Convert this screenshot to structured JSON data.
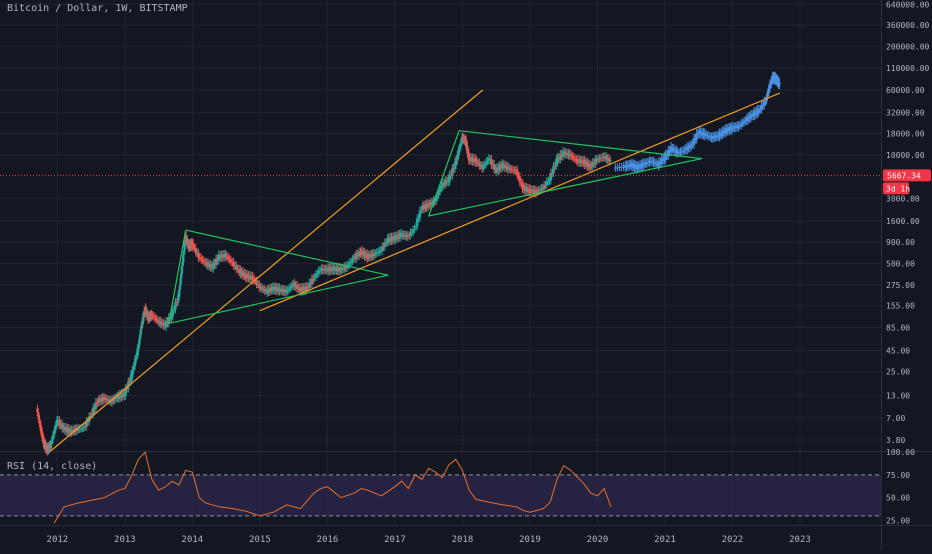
{
  "header": {
    "symbol_label": "Bitcoin / Dollar, 1W, BITSTAMP"
  },
  "rsi_panel": {
    "label": "RSI (14, close)",
    "upper_band": 75,
    "lower_band": 30,
    "ticks": [
      "100.00",
      "75.00",
      "50.00",
      "25.00"
    ]
  },
  "price_marker": {
    "price_label": "5667.34",
    "countdown_label": "3d 1h",
    "value": 5667.34,
    "color": "#f23645"
  },
  "colors": {
    "background": "#131722",
    "grid": "#1f2430",
    "up_candle": "#26a69a",
    "down_candle": "#ef5350",
    "projection": "#4a90e2",
    "channel_line": "#f59a23",
    "triangle_line": "#22c55e",
    "rsi_line": "#e8702a",
    "rsi_band_fill": "#2a2446"
  },
  "chart_data": [
    {
      "type": "candlestick",
      "title": "Bitcoin / Dollar, 1W, BITSTAMP",
      "scale": "log",
      "y_ticks": [
        "640000.00",
        "360000.00",
        "200000.00",
        "110000.00",
        "60000.00",
        "32000.00",
        "18000.00",
        "10000.00",
        "5667.34",
        "3000.00",
        "1600.00",
        "900.00",
        "500.00",
        "275.00",
        "155.00",
        "85.00",
        "45.00",
        "25.00",
        "13.00",
        "7.00",
        "3.80"
      ],
      "y_tick_values": [
        640000,
        360000,
        200000,
        110000,
        60000,
        32000,
        18000,
        10000,
        5667.34,
        3000,
        1600,
        900,
        500,
        275,
        155,
        85,
        45,
        25,
        13,
        7,
        3.8
      ],
      "x_ticks": [
        "2012",
        "2013",
        "2014",
        "2015",
        "2016",
        "2017",
        "2018",
        "2019",
        "2020",
        "2021",
        "2022",
        "2023"
      ],
      "xlim": [
        2011.15,
        2024.2
      ],
      "ylim": [
        2.8,
        720000
      ],
      "series": [
        {
          "kind": "historical",
          "x": [
            2011.7,
            2011.75,
            2011.8,
            2011.85,
            2011.9,
            2011.95,
            2012.0,
            2012.1,
            2012.2,
            2012.3,
            2012.4,
            2012.5,
            2012.6,
            2012.7,
            2012.8,
            2012.9,
            2013.0,
            2013.1,
            2013.2,
            2013.25,
            2013.3,
            2013.35,
            2013.4,
            2013.5,
            2013.6,
            2013.7,
            2013.8,
            2013.85,
            2013.9,
            2013.95,
            2014.0,
            2014.1,
            2014.2,
            2014.3,
            2014.4,
            2014.5,
            2014.6,
            2014.7,
            2014.8,
            2014.9,
            2015.0,
            2015.1,
            2015.2,
            2015.3,
            2015.4,
            2015.5,
            2015.6,
            2015.7,
            2015.8,
            2015.9,
            2016.0,
            2016.1,
            2016.2,
            2016.3,
            2016.4,
            2016.5,
            2016.6,
            2016.7,
            2016.8,
            2016.9,
            2017.0,
            2017.1,
            2017.2,
            2017.3,
            2017.4,
            2017.5,
            2017.6,
            2017.7,
            2017.8,
            2017.9,
            2017.95,
            2018.0,
            2018.05,
            2018.1,
            2018.2,
            2018.3,
            2018.4,
            2018.5,
            2018.6,
            2018.7,
            2018.8,
            2018.9,
            2019.0,
            2019.1,
            2019.2,
            2019.3,
            2019.4,
            2019.5,
            2019.6,
            2019.7,
            2019.8,
            2019.9,
            2020.0,
            2020.1,
            2020.2
          ],
          "close": [
            9,
            5.5,
            3.5,
            2.9,
            3.2,
            4.5,
            6.5,
            5.2,
            4.8,
            5.1,
            5.3,
            7.5,
            11,
            12,
            11,
            12.5,
            13.5,
            22,
            47,
            90,
            140,
            110,
            120,
            100,
            90,
            120,
            200,
            450,
            1000,
            800,
            850,
            600,
            500,
            450,
            600,
            620,
            500,
            400,
            350,
            330,
            260,
            230,
            250,
            240,
            230,
            280,
            240,
            250,
            330,
            420,
            420,
            430,
            420,
            460,
            580,
            680,
            600,
            640,
            720,
            960,
            1000,
            1100,
            1050,
            1300,
            2300,
            2500,
            2800,
            4300,
            5000,
            7800,
            11000,
            16000,
            14500,
            9000,
            8500,
            7000,
            9000,
            6500,
            7500,
            6800,
            6400,
            4000,
            3700,
            3600,
            4000,
            5200,
            8500,
            10500,
            10000,
            8500,
            8200,
            7200,
            8800,
            9500,
            8400
          ],
          "color_up": "#26a69a",
          "color_down": "#ef5350"
        },
        {
          "kind": "projection",
          "x": [
            2020.25,
            2020.4,
            2020.5,
            2020.6,
            2020.7,
            2020.8,
            2020.9,
            2021.0,
            2021.1,
            2021.2,
            2021.3,
            2021.4,
            2021.5,
            2021.6,
            2021.7,
            2021.8,
            2021.9,
            2022.0,
            2022.1,
            2022.2,
            2022.3,
            2022.4,
            2022.5,
            2022.55,
            2022.6,
            2022.65,
            2022.7
          ],
          "close": [
            7000,
            7200,
            7600,
            7000,
            7800,
            8400,
            7600,
            9200,
            12000,
            10500,
            11500,
            13000,
            18500,
            17500,
            16000,
            17000,
            19500,
            21000,
            22000,
            26000,
            30000,
            34000,
            45000,
            65000,
            85000,
            80000,
            70000
          ],
          "color": "#4a90e2"
        }
      ],
      "overlays": [
        {
          "kind": "channel_line",
          "color": "#f59a23",
          "x": [
            2011.9,
            2018.3
          ],
          "y": [
            2.8,
            60000
          ]
        },
        {
          "kind": "channel_line",
          "color": "#f59a23",
          "x": [
            2015.0,
            2022.7
          ],
          "y": [
            135,
            55000
          ]
        },
        {
          "kind": "triangle",
          "color": "#22c55e",
          "x": [
            2013.9,
            2016.9,
            2013.65,
            2013.9
          ],
          "y": [
            1250,
            360,
            95,
            1250
          ]
        },
        {
          "kind": "triangle",
          "color": "#22c55e",
          "x": [
            2017.95,
            2021.55,
            2017.5,
            2017.95
          ],
          "y": [
            19500,
            9000,
            1850,
            19500
          ]
        }
      ]
    },
    {
      "type": "line",
      "title": "RSI (14, close)",
      "ylim": [
        20,
        100
      ],
      "y_ticks": [
        100,
        75,
        50,
        25
      ],
      "x": [
        2011.95,
        2012.1,
        2012.3,
        2012.5,
        2012.7,
        2012.9,
        2013.0,
        2013.1,
        2013.2,
        2013.3,
        2013.4,
        2013.5,
        2013.6,
        2013.7,
        2013.8,
        2013.9,
        2014.0,
        2014.1,
        2014.2,
        2014.4,
        2014.6,
        2014.8,
        2015.0,
        2015.2,
        2015.4,
        2015.6,
        2015.8,
        2015.9,
        2016.0,
        2016.2,
        2016.4,
        2016.5,
        2016.6,
        2016.8,
        2017.0,
        2017.1,
        2017.2,
        2017.3,
        2017.4,
        2017.5,
        2017.6,
        2017.7,
        2017.8,
        2017.9,
        2018.0,
        2018.1,
        2018.2,
        2018.4,
        2018.6,
        2018.8,
        2018.9,
        2019.0,
        2019.2,
        2019.3,
        2019.4,
        2019.5,
        2019.6,
        2019.8,
        2019.9,
        2020.0,
        2020.1,
        2020.2
      ],
      "values": [
        22,
        40,
        44,
        47,
        50,
        58,
        60,
        74,
        92,
        100,
        70,
        58,
        62,
        68,
        64,
        80,
        78,
        50,
        44,
        40,
        38,
        35,
        30,
        34,
        42,
        38,
        55,
        60,
        62,
        50,
        55,
        60,
        58,
        52,
        62,
        68,
        60,
        75,
        70,
        82,
        78,
        72,
        86,
        92,
        80,
        58,
        48,
        45,
        42,
        40,
        36,
        34,
        38,
        45,
        70,
        85,
        80,
        65,
        55,
        52,
        60,
        40
      ],
      "color": "#e8702a"
    }
  ]
}
